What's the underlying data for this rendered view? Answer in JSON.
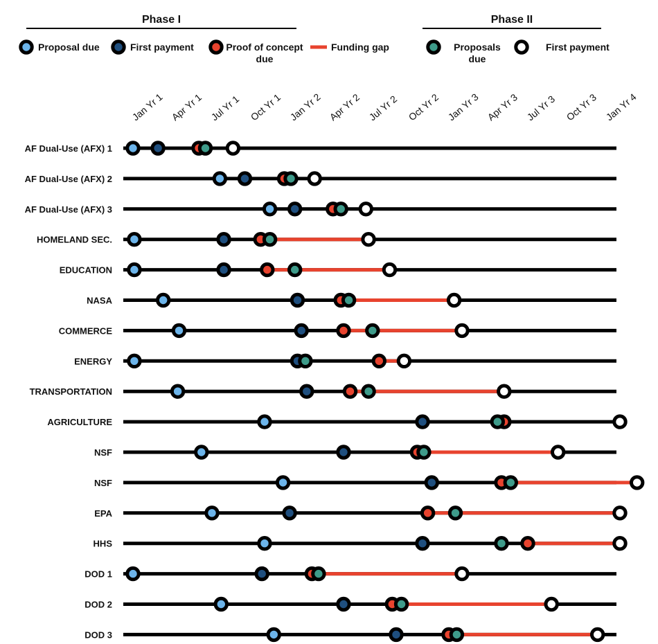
{
  "chart_data": {
    "type": "timeline",
    "phase_headers": [
      "Phase I",
      "Phase II"
    ],
    "legend": {
      "phase1": [
        {
          "key": "proposal",
          "label": [
            "Proposal due"
          ]
        },
        {
          "key": "payment",
          "label": [
            "First payment"
          ]
        },
        {
          "key": "poc",
          "label": [
            "Proof of concept",
            "due"
          ]
        },
        {
          "key": "gap",
          "label": [
            "Funding gap"
          ]
        }
      ],
      "phase2": [
        {
          "key": "p2proposal",
          "label": [
            "Proposals",
            "due"
          ]
        },
        {
          "key": "p2payment",
          "label": [
            "First payment"
          ]
        }
      ]
    },
    "colors": {
      "proposal": "#6cb4ea",
      "payment": "#1f4f7f",
      "poc": "#e8432e",
      "p2proposal": "#3e9b8a",
      "p2payment": "#ffffff",
      "gap": "#e8432e",
      "line": "#000000"
    },
    "x_ticks": [
      "Jan Yr 1",
      "Apr Yr 1",
      "Jul Yr 1",
      "Oct Yr 1",
      "Jan Yr 2",
      "Apr Yr 2",
      "Jul Yr 2",
      "Oct Yr 2",
      "Jan Yr 3",
      "Apr Yr 3",
      "Jul Yr 3",
      "Oct Yr 3",
      "Jan Yr 4"
    ],
    "x_unit": "months from Jan Yr 1",
    "rows": [
      {
        "label": "AF Dual-Use (AFX) 1",
        "proposal": 0.0,
        "payment": 1.9,
        "poc": 5.0,
        "p2proposal": 5.5,
        "p2payment": 7.6,
        "gap": null
      },
      {
        "label": "AF Dual-Use (AFX) 2",
        "proposal": 6.6,
        "payment": 8.5,
        "poc": 11.5,
        "p2proposal": 12.0,
        "p2payment": 13.8,
        "gap": null
      },
      {
        "label": "AF Dual-Use (AFX) 3",
        "proposal": 10.4,
        "payment": 12.3,
        "poc": 15.2,
        "p2proposal": 15.8,
        "p2payment": 17.7,
        "gap": null
      },
      {
        "label": "HOMELAND SEC.",
        "proposal": 0.1,
        "payment": 6.9,
        "poc": 9.7,
        "p2proposal": 10.4,
        "p2payment": 17.9,
        "gap": [
          10.4,
          17.9
        ]
      },
      {
        "label": "EDUCATION",
        "proposal": 0.1,
        "payment": 6.9,
        "poc": 10.2,
        "p2proposal": 12.3,
        "p2payment": 19.5,
        "gap": [
          10.2,
          19.5
        ]
      },
      {
        "label": "NASA",
        "proposal": 2.3,
        "payment": 12.5,
        "poc": 15.8,
        "p2proposal": 16.4,
        "p2payment": 24.4,
        "gap": [
          16.4,
          24.4
        ]
      },
      {
        "label": "COMMERCE",
        "proposal": 3.5,
        "payment": 12.8,
        "poc": 16.0,
        "p2proposal": 18.2,
        "p2payment": 25.0,
        "gap": [
          16.0,
          25.0
        ]
      },
      {
        "label": "ENERGY",
        "proposal": 0.1,
        "payment": 12.5,
        "poc": 18.7,
        "p2proposal": 13.1,
        "p2payment": 20.6,
        "gap": [
          18.7,
          20.6
        ]
      },
      {
        "label": "TRANSPORTATION",
        "proposal": 3.4,
        "payment": 13.2,
        "poc": 16.5,
        "p2proposal": 17.9,
        "p2payment": 28.2,
        "gap": [
          16.5,
          28.2
        ]
      },
      {
        "label": "AGRICULTURE",
        "proposal": 10.0,
        "payment": 22.0,
        "poc": 28.2,
        "p2proposal": 27.7,
        "p2payment": 37.0,
        "gap": null
      },
      {
        "label": "NSF",
        "proposal": 5.2,
        "payment": 16.0,
        "poc": 21.6,
        "p2proposal": 22.1,
        "p2payment": 32.3,
        "gap": [
          22.1,
          32.3
        ]
      },
      {
        "label": "NSF",
        "proposal": 11.4,
        "payment": 22.7,
        "poc": 28.0,
        "p2proposal": 28.7,
        "p2payment": 38.3,
        "gap": [
          28.7,
          38.3
        ]
      },
      {
        "label": "EPA",
        "proposal": 6.0,
        "payment": 11.9,
        "poc": 22.4,
        "p2proposal": 24.5,
        "p2payment": 37.0,
        "gap": [
          22.4,
          37.0
        ]
      },
      {
        "label": "HHS",
        "proposal": 10.0,
        "payment": 22.0,
        "poc": 30.0,
        "p2proposal": 28.0,
        "p2payment": 37.0,
        "gap": [
          30.0,
          37.0
        ]
      },
      {
        "label": "DOD 1",
        "proposal": 0.0,
        "payment": 9.8,
        "poc": 13.6,
        "p2proposal": 14.1,
        "p2payment": 25.0,
        "gap": [
          14.1,
          25.0
        ]
      },
      {
        "label": "DOD 2",
        "proposal": 6.7,
        "payment": 16.0,
        "poc": 19.7,
        "p2proposal": 20.4,
        "p2payment": 31.8,
        "gap": [
          19.7,
          31.8
        ]
      },
      {
        "label": "DOD 3",
        "proposal": 10.7,
        "payment": 20.0,
        "poc": 24.0,
        "p2proposal": 24.6,
        "p2payment": 35.3,
        "gap": [
          24.0,
          35.3
        ]
      }
    ]
  }
}
